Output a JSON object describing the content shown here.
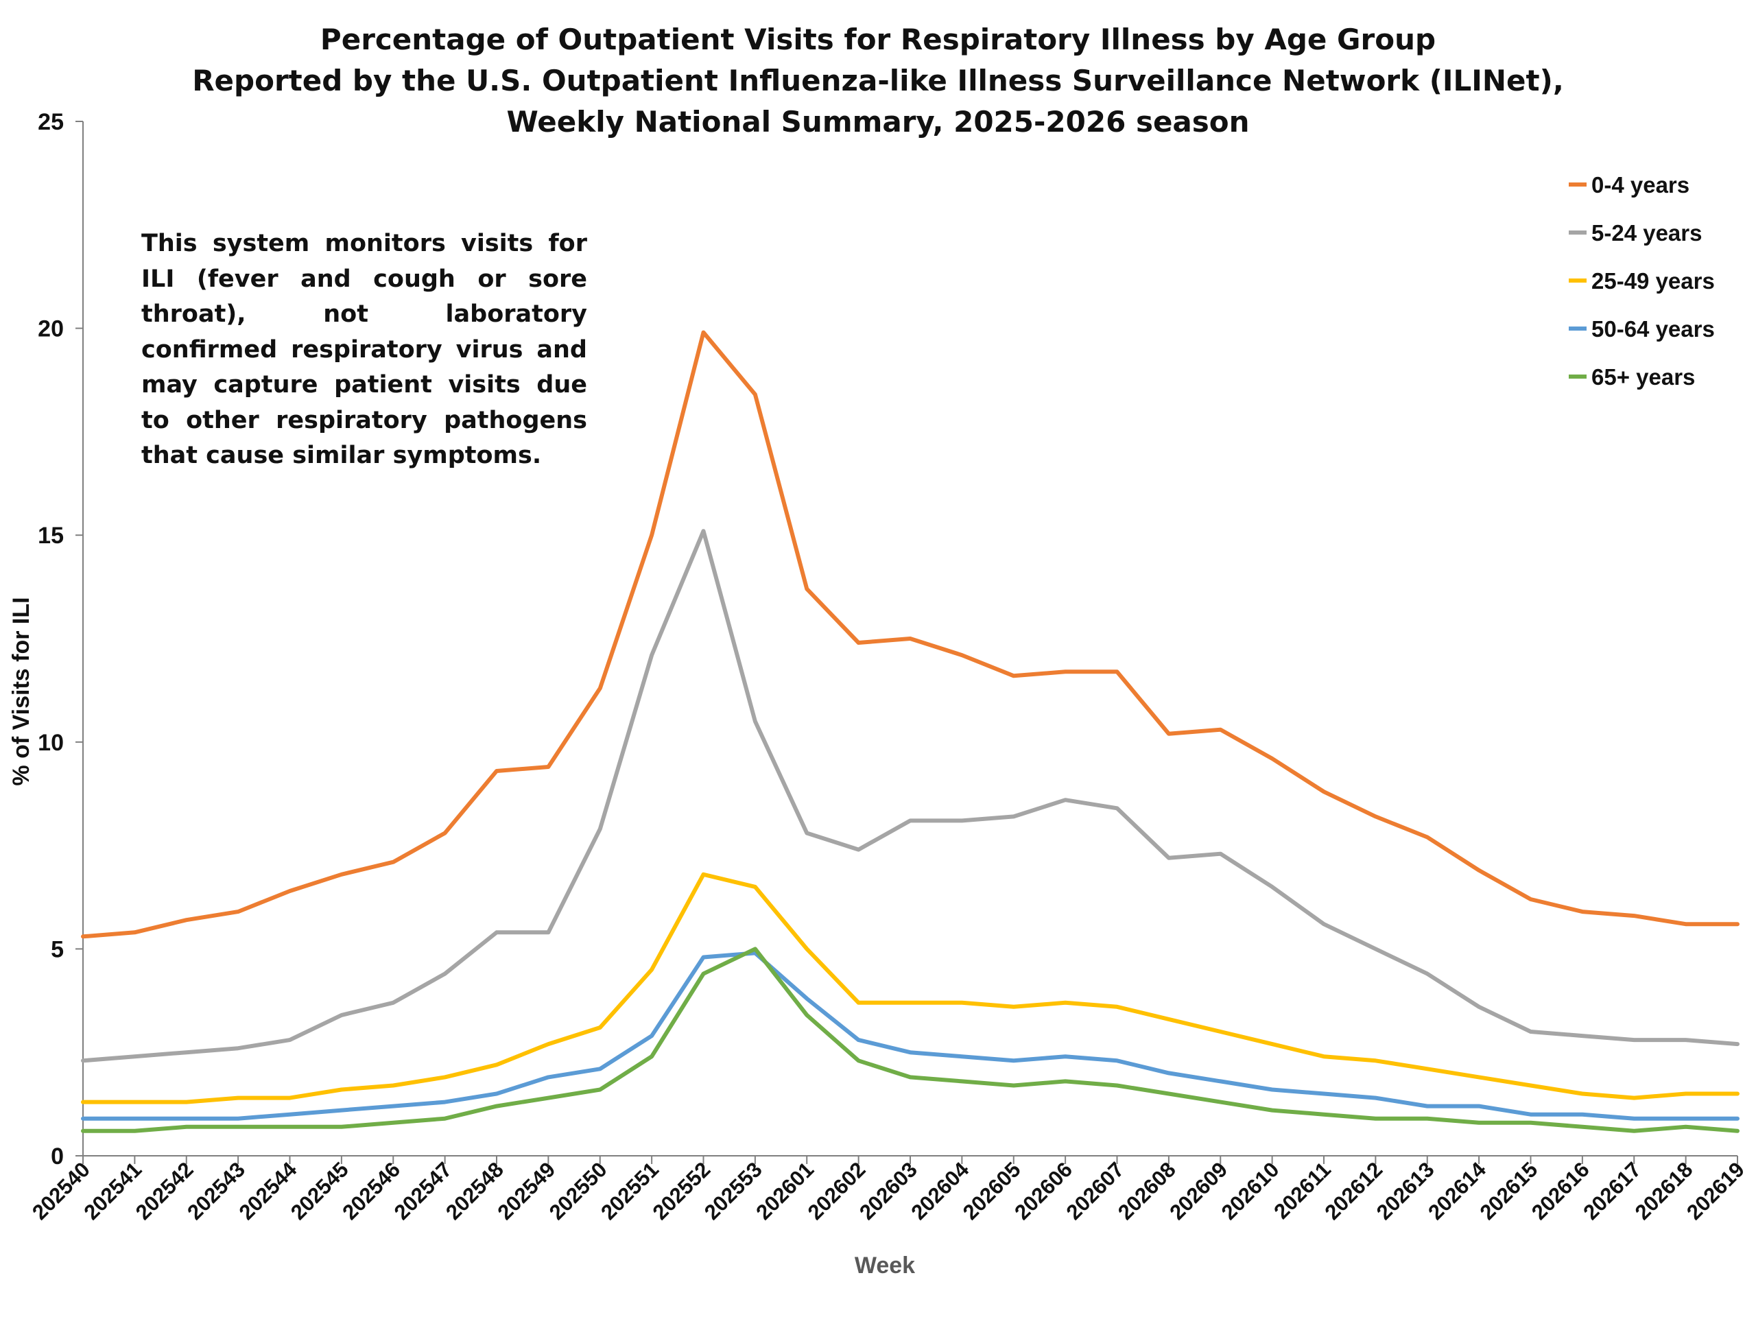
{
  "chart_data": {
    "type": "line",
    "title": [
      "Percentage of Outpatient Visits for Respiratory Illness by Age Group",
      "Reported by the U.S. Outpatient Influenza-like Illness Surveillance Network (ILINet),",
      "Weekly National Summary, 2025-2026 season"
    ],
    "xlabel": "Week",
    "ylabel": "% of Visits for ILI",
    "ylim": [
      0,
      25
    ],
    "yticks": [
      0,
      5,
      10,
      15,
      20,
      25
    ],
    "grid": false,
    "legend_position": "top-right",
    "annotation": "This system monitors visits for ILI (fever and cough or sore throat), not laboratory confirmed respiratory virus and may capture patient visits due to other respiratory pathogens that cause similar symptoms.",
    "categories": [
      "202540",
      "202541",
      "202542",
      "202543",
      "202544",
      "202545",
      "202546",
      "202547",
      "202548",
      "202549",
      "202550",
      "202551",
      "202552",
      "202553",
      "202601",
      "202602",
      "202603",
      "202604",
      "202605",
      "202606",
      "202607",
      "202608",
      "202609",
      "202610",
      "202611",
      "202612",
      "202613",
      "202614",
      "202615",
      "202616",
      "202617",
      "202618",
      "202619"
    ],
    "series": [
      {
        "name": "0-4 years",
        "color": "#ED7D31",
        "values": [
          5.3,
          5.4,
          5.7,
          5.9,
          6.4,
          6.8,
          7.1,
          7.8,
          9.3,
          9.4,
          11.3,
          15.0,
          19.9,
          18.4,
          13.7,
          12.4,
          12.5,
          12.1,
          11.6,
          11.7,
          11.7,
          10.2,
          10.3,
          9.6,
          8.8,
          8.2,
          7.7,
          6.9,
          6.2,
          5.9,
          5.8,
          5.6,
          5.6
        ]
      },
      {
        "name": "5-24 years",
        "color": "#A5A5A5",
        "values": [
          2.3,
          2.4,
          2.5,
          2.6,
          2.8,
          3.4,
          3.7,
          4.4,
          5.4,
          5.4,
          7.9,
          12.1,
          15.1,
          10.5,
          7.8,
          7.4,
          8.1,
          8.1,
          8.2,
          8.6,
          8.4,
          7.2,
          7.3,
          6.5,
          5.6,
          5.0,
          4.4,
          3.6,
          3.0,
          2.9,
          2.8,
          2.8,
          2.7
        ]
      },
      {
        "name": "25-49 years",
        "color": "#FFC000",
        "values": [
          1.3,
          1.3,
          1.3,
          1.4,
          1.4,
          1.6,
          1.7,
          1.9,
          2.2,
          2.7,
          3.1,
          4.5,
          6.8,
          6.5,
          5.0,
          3.7,
          3.7,
          3.7,
          3.6,
          3.7,
          3.6,
          3.3,
          3.0,
          2.7,
          2.4,
          2.3,
          2.1,
          1.9,
          1.7,
          1.5,
          1.4,
          1.5,
          1.5
        ]
      },
      {
        "name": "50-64 years",
        "color": "#5B9BD5",
        "values": [
          0.9,
          0.9,
          0.9,
          0.9,
          1.0,
          1.1,
          1.2,
          1.3,
          1.5,
          1.9,
          2.1,
          2.9,
          4.8,
          4.9,
          3.8,
          2.8,
          2.5,
          2.4,
          2.3,
          2.4,
          2.3,
          2.0,
          1.8,
          1.6,
          1.5,
          1.4,
          1.2,
          1.2,
          1.0,
          1.0,
          0.9,
          0.9,
          0.9
        ]
      },
      {
        "name": "65+ years",
        "color": "#70AD47",
        "values": [
          0.6,
          0.6,
          0.7,
          0.7,
          0.7,
          0.7,
          0.8,
          0.9,
          1.2,
          1.4,
          1.6,
          2.4,
          4.4,
          5.0,
          3.4,
          2.3,
          1.9,
          1.8,
          1.7,
          1.8,
          1.7,
          1.5,
          1.3,
          1.1,
          1.0,
          0.9,
          0.9,
          0.8,
          0.8,
          0.7,
          0.6,
          0.7,
          0.6
        ]
      }
    ]
  }
}
